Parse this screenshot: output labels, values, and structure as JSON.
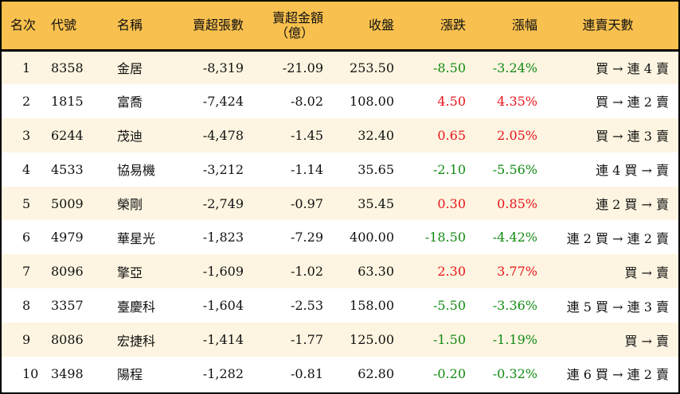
{
  "headers": {
    "rank": "名次",
    "code": "代號",
    "name": "名稱",
    "shares": "賣超張數",
    "amount_line1": "賣超金額",
    "amount_line2": "（億）",
    "close": "收盤",
    "change": "漲跌",
    "pct": "漲幅",
    "streak": "連賣天數"
  },
  "colors": {
    "header_bg": "#f8c04e",
    "row_odd": "#fdf5e1",
    "up": "#e8141b",
    "down": "#138a13"
  },
  "rows": [
    {
      "rank": "1",
      "code": "8358",
      "name": "金居",
      "shares": "-8,319",
      "amount": "-21.09",
      "close": "253.50",
      "change": "-8.50",
      "pct": "-3.24%",
      "dir": "down",
      "streak": "買 → 連 4 賣"
    },
    {
      "rank": "2",
      "code": "1815",
      "name": "富喬",
      "shares": "-7,424",
      "amount": "-8.02",
      "close": "108.00",
      "change": "4.50",
      "pct": "4.35%",
      "dir": "up",
      "streak": "買 → 連 2 賣"
    },
    {
      "rank": "3",
      "code": "6244",
      "name": "茂迪",
      "shares": "-4,478",
      "amount": "-1.45",
      "close": "32.40",
      "change": "0.65",
      "pct": "2.05%",
      "dir": "up",
      "streak": "買 → 連 3 賣"
    },
    {
      "rank": "4",
      "code": "4533",
      "name": "協易機",
      "shares": "-3,212",
      "amount": "-1.14",
      "close": "35.65",
      "change": "-2.10",
      "pct": "-5.56%",
      "dir": "down",
      "streak": "連 4 買 → 賣"
    },
    {
      "rank": "5",
      "code": "5009",
      "name": "榮剛",
      "shares": "-2,749",
      "amount": "-0.97",
      "close": "35.45",
      "change": "0.30",
      "pct": "0.85%",
      "dir": "up",
      "streak": "連 2 買 → 賣"
    },
    {
      "rank": "6",
      "code": "4979",
      "name": "華星光",
      "shares": "-1,823",
      "amount": "-7.29",
      "close": "400.00",
      "change": "-18.50",
      "pct": "-4.42%",
      "dir": "down",
      "streak": "連 2 買 → 連 2 賣"
    },
    {
      "rank": "7",
      "code": "8096",
      "name": "擎亞",
      "shares": "-1,609",
      "amount": "-1.02",
      "close": "63.30",
      "change": "2.30",
      "pct": "3.77%",
      "dir": "up",
      "streak": "買 → 賣"
    },
    {
      "rank": "8",
      "code": "3357",
      "name": "臺慶科",
      "shares": "-1,604",
      "amount": "-2.53",
      "close": "158.00",
      "change": "-5.50",
      "pct": "-3.36%",
      "dir": "down",
      "streak": "連 5 買 → 連 3 賣"
    },
    {
      "rank": "9",
      "code": "8086",
      "name": "宏捷科",
      "shares": "-1,414",
      "amount": "-1.77",
      "close": "125.00",
      "change": "-1.50",
      "pct": "-1.19%",
      "dir": "down",
      "streak": "買 → 賣"
    },
    {
      "rank": "10",
      "code": "3498",
      "name": "陽程",
      "shares": "-1,282",
      "amount": "-0.81",
      "close": "62.80",
      "change": "-0.20",
      "pct": "-0.32%",
      "dir": "down",
      "streak": "連 6 買 → 連 2 賣"
    }
  ]
}
